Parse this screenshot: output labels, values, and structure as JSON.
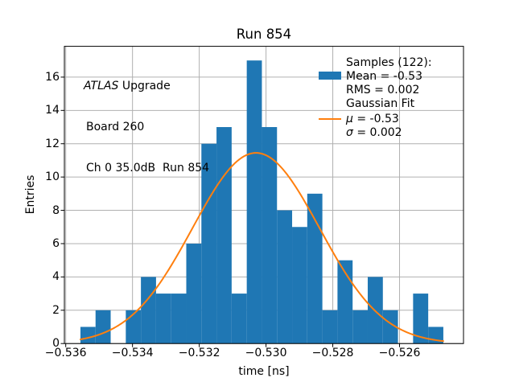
{
  "chart_data": {
    "type": "bar",
    "subtype": "histogram",
    "title": "Run 854",
    "xlabel": "time [ns]",
    "ylabel": "Entries",
    "xlim": [
      -0.536041,
      -0.524084
    ],
    "ylim": [
      0,
      17.85
    ],
    "grid": true,
    "grid_color": "#b0b0b0",
    "xticks": [
      -0.536,
      -0.534,
      -0.532,
      -0.53,
      -0.528,
      -0.526
    ],
    "xtick_labels": [
      "−0.536",
      "−0.534",
      "−0.532",
      "−0.530",
      "−0.528",
      "−0.526"
    ],
    "yticks": [
      0,
      2,
      4,
      6,
      8,
      10,
      12,
      14,
      16
    ],
    "ytick_labels": [
      "0",
      "2",
      "4",
      "6",
      "8",
      "10",
      "12",
      "14",
      "16"
    ],
    "histogram": {
      "color": "#1f77b4",
      "bin_start": -0.53556,
      "bin_width": 0.000453,
      "total_samples": 122,
      "counts": [
        1,
        2,
        0,
        2,
        4,
        3,
        3,
        6,
        12,
        13,
        3,
        17,
        13,
        8,
        7,
        9,
        2,
        5,
        2,
        4,
        2,
        0,
        3,
        1
      ]
    },
    "gaussian_fit": {
      "color": "#ff7f0e",
      "amplitude": 11.45,
      "mu": -0.5303,
      "sigma": 0.0019,
      "x_start": -0.53556,
      "x_end": -0.524688
    },
    "legend_position": "upper right"
  },
  "annotation": {
    "line1_italic": "ATLAS",
    "line1_rest": " Upgrade",
    "line2": "Board 260",
    "line3": "Ch 0 35.0dB  Run 854"
  },
  "legend": {
    "samples_header": "Samples (122):",
    "mean": "Mean = -0.53",
    "rms": "RMS = 0.002",
    "fit_header": "Gaussian Fit",
    "mu_symbol": "μ",
    "mu_value": " = -0.53",
    "sigma_symbol": "σ",
    "sigma_value": " = 0.002"
  }
}
